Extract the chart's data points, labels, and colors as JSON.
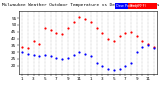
{
  "title": "Milwaukee Weather Outdoor Temperature vs Dew Point (24 Hours)",
  "title_fontsize": 3.2,
  "legend_labels": [
    "Dew Point (°F)",
    "Temp (°F)"
  ],
  "legend_colors": [
    "blue",
    "red"
  ],
  "background_color": "#ffffff",
  "grid_color": "#888888",
  "hours": [
    1,
    2,
    3,
    4,
    5,
    6,
    7,
    8,
    9,
    10,
    11,
    12,
    13,
    14,
    15,
    16,
    17,
    18,
    19,
    20,
    21,
    22,
    23,
    24
  ],
  "temp": [
    34,
    33,
    38,
    36,
    48,
    46,
    44,
    43,
    48,
    52,
    56,
    54,
    52,
    48,
    44,
    40,
    38,
    42,
    44,
    45,
    42,
    38,
    36,
    34
  ],
  "dew": [
    30,
    29,
    28,
    27,
    28,
    27,
    26,
    25,
    26,
    28,
    30,
    29,
    27,
    22,
    20,
    18,
    17,
    18,
    20,
    22,
    30,
    34,
    35,
    33
  ],
  "xlim": [
    0.5,
    24.5
  ],
  "ylim": [
    14,
    60
  ],
  "ytick_values": [
    20,
    25,
    30,
    35,
    40,
    45,
    50,
    55
  ],
  "ytick_labels": [
    "20",
    "25",
    "30",
    "35",
    "40",
    "45",
    "50",
    "55"
  ],
  "xtick_positions": [
    1,
    2,
    3,
    4,
    5,
    6,
    7,
    8,
    9,
    10,
    11,
    12,
    13,
    14,
    15,
    16,
    17,
    18,
    19,
    20,
    21,
    22,
    23,
    24
  ],
  "xtick_labels": [
    "1",
    "",
    "3",
    "",
    "5",
    "",
    "7",
    "",
    "9",
    "",
    "11",
    "",
    "1",
    "",
    "3",
    "",
    "5",
    "",
    "7",
    "",
    "9",
    "",
    "11",
    ""
  ],
  "tick_fontsize": 3.0,
  "dot_size": 2.5,
  "figsize": [
    1.6,
    0.87
  ],
  "dpi": 100
}
